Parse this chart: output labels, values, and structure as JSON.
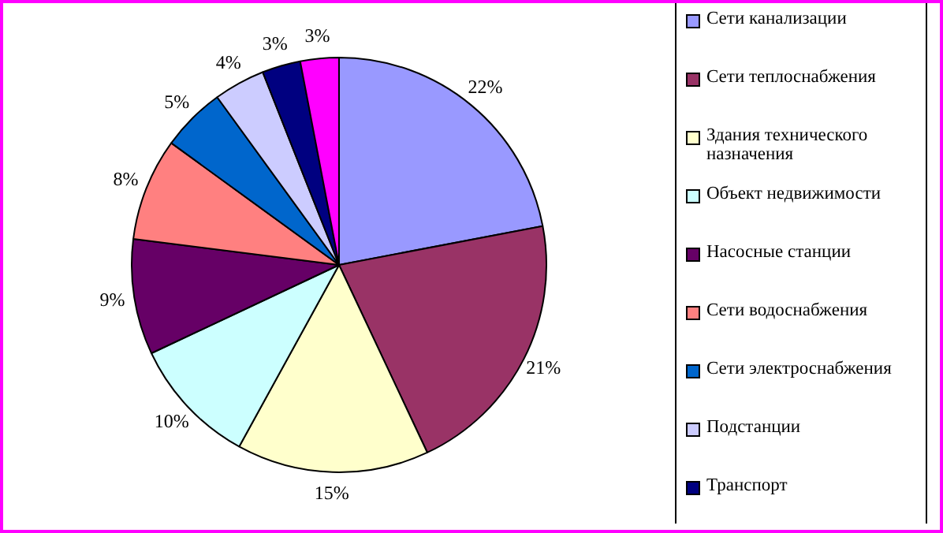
{
  "chart_data": {
    "type": "pie",
    "categories": [
      "Сети канализации",
      "Сети теплоснабжения",
      "Здания технического назначения",
      "Объект недвижимости",
      "Насосные станции",
      "Сети водоснабжения",
      "Сети электроснабжения",
      "Подстанции",
      "Транспорт",
      null
    ],
    "values": [
      22,
      21,
      15,
      10,
      9,
      8,
      5,
      4,
      3,
      3
    ],
    "colors": [
      "#9999ff",
      "#993366",
      "#ffffcc",
      "#ccffff",
      "#660066",
      "#ff8080",
      "#0066cc",
      "#ccccff",
      "#000080",
      "#ff00ff"
    ],
    "value_labels": [
      "22%",
      "21%",
      "15%",
      "10%",
      "9%",
      "8%",
      "5%",
      "4%",
      "3%",
      "3%"
    ],
    "legend": "right"
  }
}
